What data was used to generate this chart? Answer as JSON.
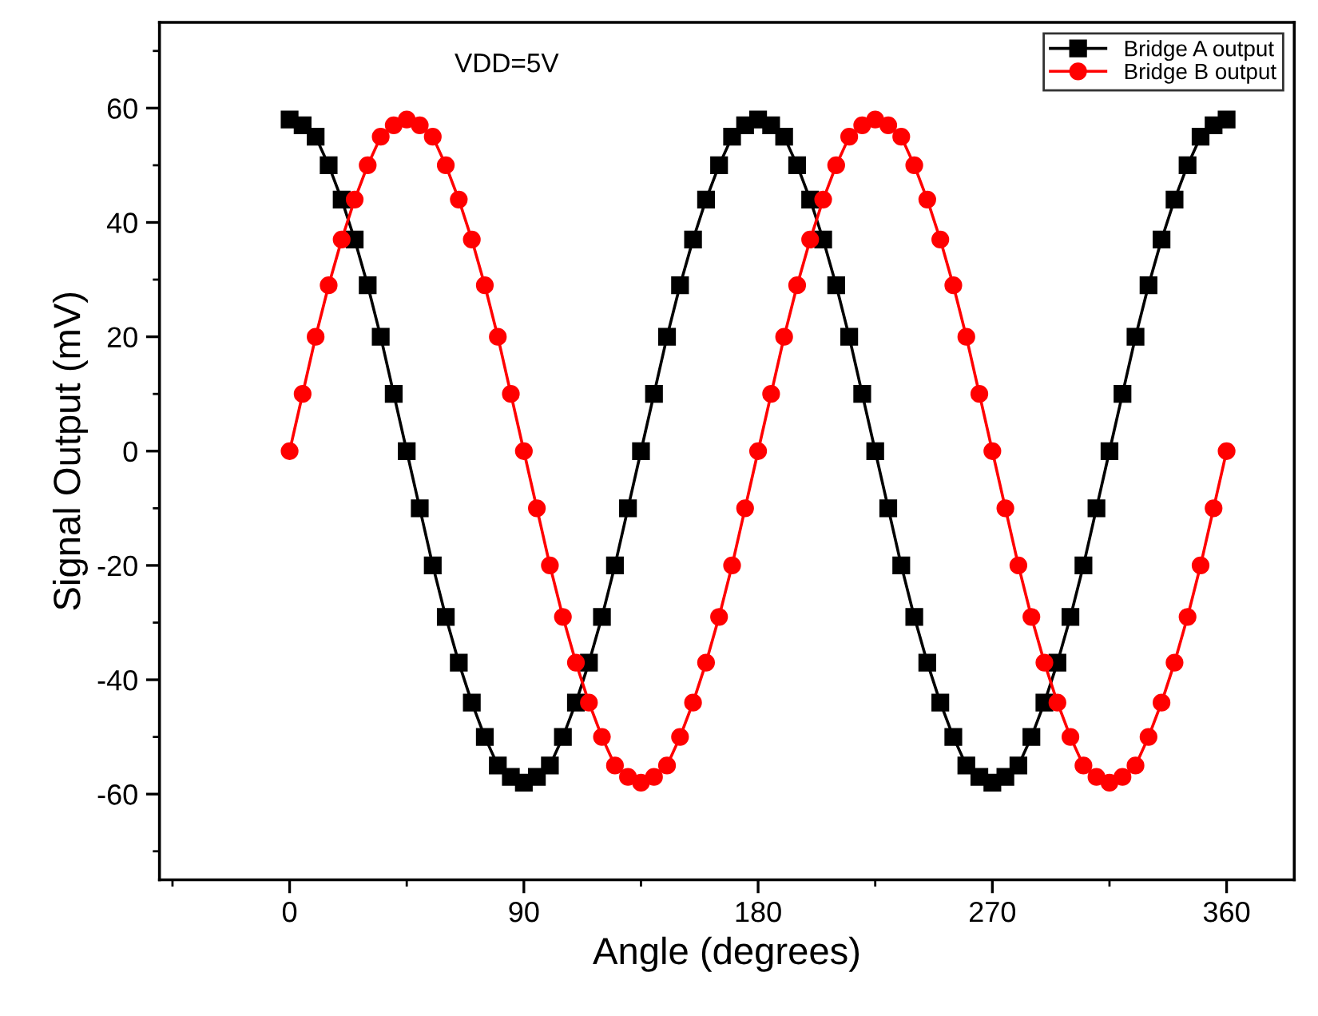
{
  "chart_data": {
    "type": "line",
    "xlabel": "Angle (degrees)",
    "ylabel": "Signal Output (mV)",
    "annotations": [
      "VDD=5V"
    ],
    "x": [
      0,
      5,
      10,
      15,
      20,
      25,
      30,
      35,
      40,
      45,
      50,
      55,
      60,
      65,
      70,
      75,
      80,
      85,
      90,
      95,
      100,
      105,
      110,
      115,
      120,
      125,
      130,
      135,
      140,
      145,
      150,
      155,
      160,
      165,
      170,
      175,
      180,
      185,
      190,
      195,
      200,
      205,
      210,
      215,
      220,
      225,
      230,
      235,
      240,
      245,
      250,
      255,
      260,
      265,
      270,
      275,
      280,
      285,
      290,
      295,
      300,
      305,
      310,
      315,
      320,
      325,
      330,
      335,
      340,
      345,
      350,
      355,
      360
    ],
    "series": [
      {
        "name": "Bridge A output",
        "color": "#000000",
        "marker": "square",
        "values": [
          58,
          57,
          55,
          50,
          44,
          37,
          29,
          20,
          10,
          0,
          -10,
          -20,
          -29,
          -37,
          -44,
          -50,
          -55,
          -57,
          -58,
          -57,
          -55,
          -50,
          -44,
          -37,
          -29,
          -20,
          -10,
          0,
          10,
          20,
          29,
          37,
          44,
          50,
          55,
          57,
          58,
          57,
          55,
          50,
          44,
          37,
          29,
          20,
          10,
          0,
          -10,
          -20,
          -29,
          -37,
          -44,
          -50,
          -55,
          -57,
          -58,
          -57,
          -55,
          -50,
          -44,
          -37,
          -29,
          -20,
          -10,
          0,
          10,
          20,
          29,
          37,
          44,
          50,
          55,
          57,
          58
        ]
      },
      {
        "name": "Bridge B output",
        "color": "#ff0000",
        "marker": "circle",
        "values": [
          0,
          10,
          20,
          29,
          37,
          44,
          50,
          55,
          57,
          58,
          57,
          55,
          50,
          44,
          37,
          29,
          20,
          10,
          0,
          -10,
          -20,
          -29,
          -37,
          -44,
          -50,
          -55,
          -57,
          -58,
          -57,
          -55,
          -50,
          -44,
          -37,
          -29,
          -20,
          -10,
          0,
          10,
          20,
          29,
          37,
          44,
          50,
          55,
          57,
          58,
          57,
          55,
          50,
          44,
          37,
          29,
          20,
          10,
          0,
          -10,
          -20,
          -29,
          -37,
          -44,
          -50,
          -55,
          -57,
          -58,
          -57,
          -55,
          -50,
          -44,
          -37,
          -29,
          -20,
          -10,
          0
        ]
      }
    ],
    "xlim": [
      -50,
      386
    ],
    "xticks": [
      {
        "value": -45,
        "label": null
      },
      0,
      {
        "value": 45,
        "label": null
      },
      90,
      {
        "value": 135,
        "label": null
      },
      180,
      {
        "value": 225,
        "label": null
      },
      270,
      {
        "value": 315,
        "label": null
      },
      360
    ],
    "ylim": [
      -75,
      75
    ],
    "yticks": [
      {
        "value": -70,
        "label": null
      },
      -60,
      {
        "value": -50,
        "label": null
      },
      -40,
      {
        "value": -30,
        "label": null
      },
      -20,
      {
        "value": -10,
        "label": null
      },
      0,
      {
        "value": 10,
        "label": null
      },
      20,
      {
        "value": 30,
        "label": null
      },
      40,
      {
        "value": 50,
        "label": null
      },
      60,
      {
        "value": 70,
        "label": null
      }
    ],
    "legend": "top right",
    "grid": false,
    "line_style": "solid"
  }
}
